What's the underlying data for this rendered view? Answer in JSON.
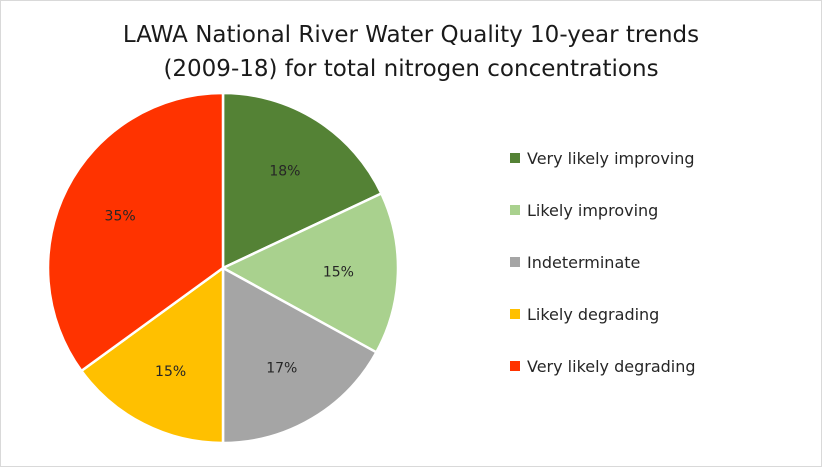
{
  "chart_data": {
    "type": "pie",
    "title": [
      "LAWA National River Water Quality 10-year trends",
      "(2009-18) for total nitrogen concentrations"
    ],
    "slices": [
      {
        "label": "Very likely improving",
        "value": 18,
        "data_label": "18%",
        "color": "#548235"
      },
      {
        "label": "Likely improving",
        "value": 15,
        "data_label": "15%",
        "color": "#a9d18e"
      },
      {
        "label": "Indeterminate",
        "value": 17,
        "data_label": "17%",
        "color": "#a5a5a5"
      },
      {
        "label": "Likely degrading",
        "value": 15,
        "data_label": "15%",
        "color": "#ffc000"
      },
      {
        "label": "Very likely degrading",
        "value": 35,
        "data_label": "35%",
        "color": "#ff3300"
      }
    ],
    "start_angle": "top",
    "direction": "clockwise",
    "legend_position": "right"
  }
}
